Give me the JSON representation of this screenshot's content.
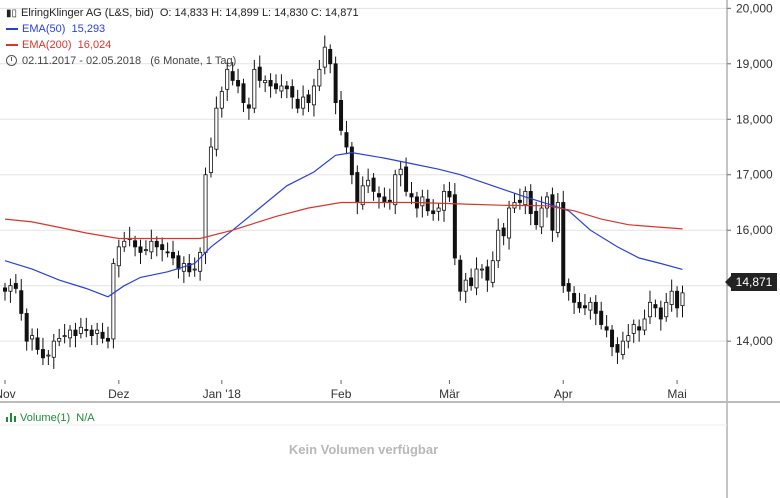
{
  "header": {
    "title": "ElringKlinger AG (L&S, bid)",
    "ohlc": "O: 14,833  H: 14,899  L: 14,830  C: 14,871",
    "ema50_label": "EMA(50)",
    "ema50_value": "15,293",
    "ema200_label": "EMA(200)",
    "ema200_value": "16,024",
    "range": "02.11.2017 - 02.05.2018",
    "range_detail": "(6 Monate, 1 Tag)"
  },
  "price_tag": "14,871",
  "volume": {
    "label": "Volume(1)",
    "value": "N/A",
    "empty_message": "Kein Volumen verfügbar"
  },
  "colors": {
    "ema50": "#2a40d8",
    "ema200": "#d8362a",
    "candle": "#111111",
    "volume": "#1f8a3a"
  },
  "chart_data": {
    "type": "candlestick",
    "y_axis_ticks": [
      "14,000",
      "15,000",
      "16,000",
      "17,000",
      "18,000",
      "19,000",
      "20,000"
    ],
    "y_axis_values": [
      14000,
      15000,
      16000,
      17000,
      18000,
      19000,
      20000
    ],
    "ylim": [
      13300,
      20150
    ],
    "y_axis_side": "right",
    "x_axis_labels": [
      {
        "label": "Nov",
        "index": 0
      },
      {
        "label": "Dez",
        "index": 21
      },
      {
        "label": "Jan '18",
        "index": 40
      },
      {
        "label": "Feb",
        "index": 62
      },
      {
        "label": "Mär",
        "index": 82
      },
      {
        "label": "Apr",
        "index": 103
      },
      {
        "label": "Mai",
        "index": 124
      }
    ],
    "grid": "horizontal",
    "closes": [
      14900,
      15000,
      14950,
      14500,
      14000,
      14100,
      13850,
      13700,
      13750,
      14000,
      14050,
      14100,
      14200,
      14100,
      14250,
      14200,
      14100,
      14200,
      14050,
      14000,
      15400,
      15700,
      15800,
      15850,
      15700,
      15600,
      15650,
      15800,
      15700,
      15650,
      15600,
      15500,
      15300,
      15400,
      15250,
      15300,
      15600,
      17000,
      17500,
      18200,
      18500,
      18900,
      18700,
      18600,
      18300,
      18200,
      18900,
      18700,
      18700,
      18600,
      18550,
      18600,
      18550,
      18400,
      18200,
      18400,
      18300,
      18600,
      18900,
      19300,
      19000,
      18300,
      17800,
      17500,
      17000,
      16500,
      16800,
      16900,
      16700,
      16600,
      16500,
      16500,
      17000,
      17100,
      16700,
      16600,
      16400,
      16600,
      16350,
      16300,
      16400,
      16700,
      16600,
      15500,
      14900,
      15100,
      15000,
      15300,
      15300,
      15100,
      15450,
      16000,
      15900,
      16400,
      16500,
      16500,
      16700,
      16300,
      16100,
      16400,
      16600,
      16000,
      16500,
      15000,
      14900,
      14700,
      14600,
      14600,
      14700,
      14500,
      14300,
      14200,
      13900,
      13800,
      14000,
      14100,
      14300,
      14200,
      14400,
      14700,
      14600,
      14400,
      14700,
      14900,
      14600,
      14871
    ],
    "series": [
      {
        "name": "EMA(50)",
        "points": [
          [
            0,
            15450
          ],
          [
            5,
            15300
          ],
          [
            10,
            15100
          ],
          [
            15,
            14950
          ],
          [
            19,
            14800
          ],
          [
            22,
            15000
          ],
          [
            25,
            15150
          ],
          [
            30,
            15250
          ],
          [
            35,
            15400
          ],
          [
            38,
            15700
          ],
          [
            42,
            16000
          ],
          [
            47,
            16400
          ],
          [
            52,
            16800
          ],
          [
            57,
            17050
          ],
          [
            61,
            17350
          ],
          [
            64,
            17400
          ],
          [
            70,
            17300
          ],
          [
            75,
            17200
          ],
          [
            80,
            17100
          ],
          [
            84,
            17000
          ],
          [
            90,
            16800
          ],
          [
            96,
            16600
          ],
          [
            101,
            16450
          ],
          [
            104,
            16350
          ],
          [
            108,
            16000
          ],
          [
            113,
            15700
          ],
          [
            117,
            15500
          ],
          [
            121,
            15400
          ],
          [
            125,
            15293
          ]
        ]
      },
      {
        "name": "EMA(200)",
        "points": [
          [
            0,
            16200
          ],
          [
            5,
            16150
          ],
          [
            10,
            16050
          ],
          [
            15,
            15950
          ],
          [
            21,
            15850
          ],
          [
            30,
            15850
          ],
          [
            36,
            15850
          ],
          [
            42,
            16000
          ],
          [
            50,
            16250
          ],
          [
            56,
            16400
          ],
          [
            62,
            16500
          ],
          [
            68,
            16500
          ],
          [
            76,
            16500
          ],
          [
            85,
            16470
          ],
          [
            92,
            16450
          ],
          [
            100,
            16440
          ],
          [
            105,
            16350
          ],
          [
            110,
            16200
          ],
          [
            115,
            16100
          ],
          [
            120,
            16060
          ],
          [
            125,
            16024
          ]
        ]
      }
    ]
  }
}
